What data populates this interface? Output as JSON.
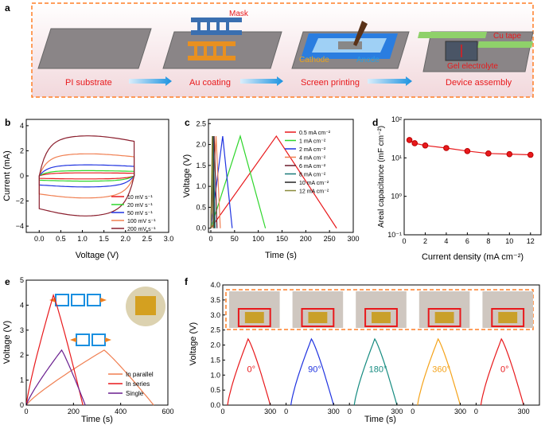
{
  "colors": {
    "red": "#e8191c",
    "green": "#2fd62c",
    "blue": "#1f33e0",
    "darkred": "#8b1f2e",
    "dark": "#6b1a2a",
    "orange": "#f07f51",
    "purple": "#6a1f8f",
    "teal": "#158b80",
    "gold": "#f5a31a",
    "frame": "#ff7f27"
  },
  "panel_a": {
    "letter": "a",
    "steps": [
      "PI substrate",
      "Au coating",
      "Screen printing",
      "Device assembly"
    ],
    "labels": {
      "mask": "Mask",
      "cathode": "Cathode",
      "anode": "Anode",
      "cu_tape": "Cu tape",
      "gel": "Gel electrolyte"
    }
  },
  "panel_b": {
    "letter": "b",
    "xlabel": "Voltage (V)",
    "ylabel": "Current (mA)",
    "xticks": [
      "0.0",
      "0.5",
      "1.0",
      "1.5",
      "2.0",
      "2.5",
      "3.0"
    ],
    "yticks": [
      "4",
      "2",
      "0",
      "−2",
      "−4"
    ]
  },
  "panel_c": {
    "letter": "c",
    "xlabel": "Time (s)",
    "ylabel": "Voltage (V)",
    "xticks": [
      "0",
      "50",
      "100",
      "150",
      "200",
      "250",
      "300"
    ],
    "yticks": [
      "2.5",
      "2.0",
      "1.5",
      "1.0",
      "0.5",
      "0.0"
    ]
  },
  "panel_d": {
    "letter": "d",
    "xlabel": "Current density (mA cm⁻²)",
    "ylabel": "Areal capacitance (mF cm⁻²)",
    "xticks": [
      "0",
      "2",
      "4",
      "6",
      "8",
      "10",
      "12"
    ],
    "yticks": [
      "10²",
      "10¹",
      "10⁰",
      "10⁻¹"
    ]
  },
  "panel_e": {
    "letter": "e",
    "xlabel": "Time (s)",
    "ylabel": "Voltage (V)",
    "xticks": [
      "0",
      "200",
      "400",
      "600"
    ],
    "yticks": [
      "5",
      "4",
      "3",
      "2",
      "1",
      "0"
    ]
  },
  "panel_f": {
    "letter": "f",
    "xlabel": "Time (s)",
    "ylabel": "Voltage (V)",
    "xticks": [
      "0",
      "300",
      "0",
      "300",
      "0",
      "300",
      "0",
      "300",
      "0",
      "300"
    ],
    "yticks": [
      "4.0",
      "3.5",
      "3.0",
      "2.5",
      "2.0",
      "1.5",
      "1.0",
      "0.5",
      "0.0"
    ],
    "angles": [
      "0°",
      "90°",
      "180°",
      "360°",
      "0°"
    ]
  },
  "chart_data": [
    {
      "type": "line",
      "panel": "b",
      "xlabel": "Voltage (V)",
      "ylabel": "Current (mA)",
      "xlim": [
        -0.3,
        3.0
      ],
      "ylim": [
        -4.5,
        4.5
      ],
      "series": [
        {
          "name": "10 mV s⁻¹",
          "color": "#e8191c",
          "half": 0.22
        },
        {
          "name": "20 mV s⁻¹",
          "color": "#2fd62c",
          "half": 0.38
        },
        {
          "name": "50 mV s⁻¹",
          "color": "#1f33e0",
          "half": 0.8
        },
        {
          "name": "100 mV s⁻¹",
          "color": "#f07f51",
          "half": 1.6
        },
        {
          "name": "200 mV s⁻¹",
          "color": "#8b1f2e",
          "half": 2.9
        }
      ]
    },
    {
      "type": "line",
      "panel": "c",
      "xlabel": "Time (s)",
      "ylabel": "Voltage (V)",
      "xlim": [
        -5,
        300
      ],
      "ylim": [
        -0.1,
        2.6
      ],
      "series": [
        {
          "name": "0.5 mA cm⁻²",
          "color": "#e8191c",
          "tc": 138,
          "td": 265
        },
        {
          "name": "1 mA cm⁻²",
          "color": "#2fd62c",
          "tc": 62,
          "td": 115
        },
        {
          "name": "2 mA cm⁻²",
          "color": "#1f33e0",
          "tc": 25,
          "td": 45
        },
        {
          "name": "4 mA cm⁻²",
          "color": "#f07f51",
          "tc": 11,
          "td": 20
        },
        {
          "name": "6 mA cm⁻²",
          "color": "#6b1a2a",
          "tc": 7,
          "td": 13
        },
        {
          "name": "8 mA cm⁻²",
          "color": "#1a7a7a",
          "tc": 5,
          "td": 9
        },
        {
          "name": "10 mA cm⁻²",
          "color": "#222",
          "tc": 4,
          "td": 7
        },
        {
          "name": "12 mA cm⁻²",
          "color": "#8a8a3a",
          "tc": 3,
          "td": 5
        }
      ]
    },
    {
      "type": "scatter",
      "panel": "d",
      "xlabel": "Current density (mA cm⁻²)",
      "ylabel": "Areal capacitance (mF cm⁻²)",
      "xlim": [
        0,
        13
      ],
      "ylog": true,
      "ylim": [
        0.1,
        100
      ],
      "series": [
        {
          "x": [
            0.5,
            1,
            2,
            4,
            6,
            8,
            10,
            12
          ],
          "values": [
            29,
            24,
            21,
            18,
            15,
            13,
            12.5,
            12
          ]
        }
      ]
    },
    {
      "type": "line",
      "panel": "e",
      "xlabel": "Time (s)",
      "ylabel": "Voltage (V)",
      "xlim": [
        0,
        600
      ],
      "ylim": [
        0,
        5
      ],
      "series": [
        {
          "name": "In parallel",
          "color": "#f07f51",
          "vmax": 2.2,
          "tc": 330,
          "td": 540
        },
        {
          "name": "In series",
          "color": "#e8191c",
          "vmax": 4.4,
          "tc": 115,
          "td": 240
        },
        {
          "name": "Single",
          "color": "#6a1f8f",
          "vmax": 2.2,
          "tc": 150,
          "td": 250
        }
      ]
    },
    {
      "type": "line",
      "panel": "f",
      "xlabel": "Time (s)",
      "ylabel": "Voltage (V)",
      "ylim": [
        0,
        4
      ],
      "series": [
        {
          "name": "0°",
          "color": "#e8191c"
        },
        {
          "name": "90°",
          "color": "#1f33e0"
        },
        {
          "name": "180°",
          "color": "#158b80"
        },
        {
          "name": "360°",
          "color": "#f5a31a"
        },
        {
          "name": "0°",
          "color": "#e8191c"
        }
      ]
    }
  ]
}
